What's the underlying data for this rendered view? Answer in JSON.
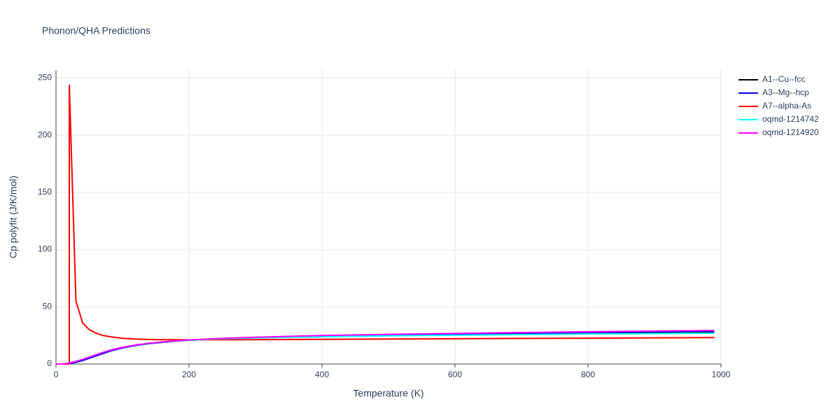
{
  "chart_data": {
    "type": "line",
    "title": "Phonon/QHA Predictions",
    "x_label": "Temperature (K)",
    "y_label": "Cp polyfit (J/K/mol)",
    "x": [
      0,
      10,
      20,
      30,
      40,
      50,
      60,
      70,
      80,
      90,
      100,
      120,
      140,
      160,
      180,
      200,
      250,
      300,
      400,
      500,
      600,
      700,
      800,
      900,
      990
    ],
    "series": [
      {
        "name": "A1--Cu--fcc",
        "color": "#000000",
        "values": [
          0,
          0,
          0.6,
          2,
          3.5,
          5.5,
          7.5,
          9.5,
          11.3,
          12.8,
          14.2,
          16.3,
          17.8,
          19,
          20,
          20.8,
          22.1,
          23,
          24.3,
          25.2,
          25.9,
          26.5,
          27.1,
          27.7,
          28.2
        ]
      },
      {
        "name": "A3--Mg--hcp",
        "color": "#0000ff",
        "values": [
          0,
          0,
          0.3,
          1.5,
          3,
          5,
          7,
          9,
          11,
          12.6,
          14,
          16.2,
          17.8,
          19,
          20,
          20.8,
          22.2,
          23.1,
          24.5,
          25.5,
          26.3,
          27,
          27.6,
          28.2,
          28.8
        ]
      },
      {
        "name": "A7--alpha-As",
        "color": "#ff0000",
        "x": [
          0,
          10,
          20,
          20,
          30,
          40,
          50,
          60,
          70,
          80,
          90,
          100,
          120,
          150,
          200,
          300,
          400,
          600,
          800,
          990
        ],
        "values": [
          0,
          0,
          0,
          244,
          55,
          36,
          30,
          27,
          25,
          24,
          23.2,
          22.5,
          21.8,
          21.3,
          21.1,
          21.3,
          21.6,
          22.1,
          22.6,
          23.1
        ]
      },
      {
        "name": "oqmd-1214742",
        "color": "#00ffff",
        "values": [
          0,
          0,
          0.8,
          2.3,
          4,
          6,
          8,
          10,
          11.8,
          13.2,
          14.5,
          16.5,
          18,
          19.2,
          20.1,
          20.8,
          22,
          22.8,
          23.8,
          24.6,
          25.2,
          25.7,
          26.2,
          26.6,
          27
        ]
      },
      {
        "name": "oqmd-1214920",
        "color": "#ff00ff",
        "values": [
          0,
          0,
          0.8,
          2.3,
          4,
          6,
          8,
          10,
          11.8,
          13.3,
          14.6,
          16.6,
          18.1,
          19.3,
          20.2,
          21,
          22.4,
          23.4,
          24.9,
          25.9,
          26.7,
          27.5,
          28.2,
          28.8,
          29.3
        ]
      }
    ],
    "xlim": [
      0,
      1000
    ],
    "xticks": [
      0,
      200,
      400,
      600,
      800,
      1000
    ],
    "ylim": [
      0,
      257
    ],
    "yticks": [
      0,
      50,
      100,
      150,
      200,
      250
    ],
    "grid": true
  }
}
